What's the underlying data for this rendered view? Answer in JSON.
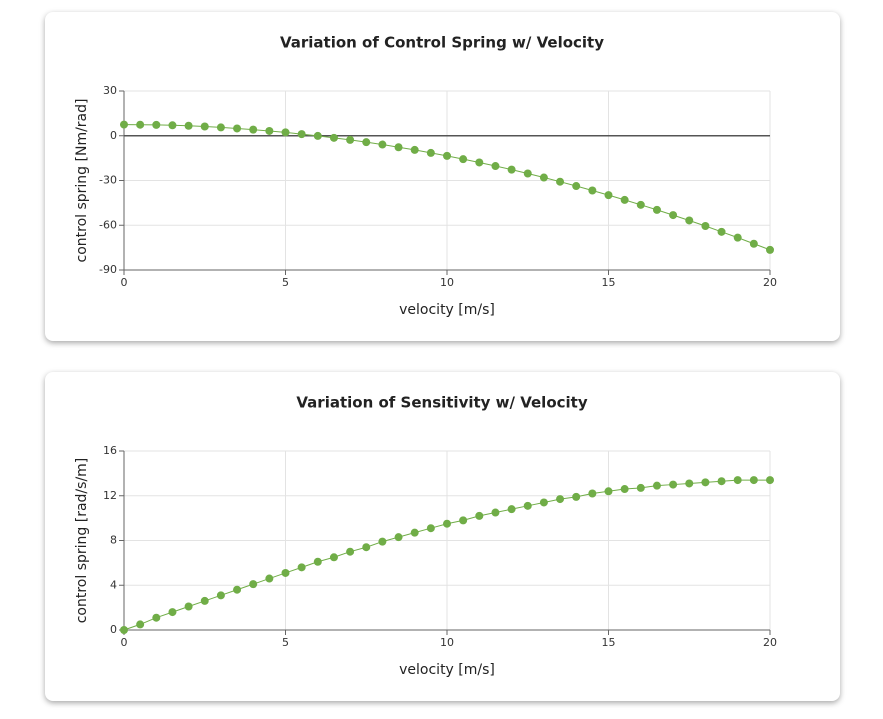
{
  "chart_data": [
    {
      "type": "line",
      "title": "Variation of Control Spring w/ Velocity",
      "x_label": "velocity [m/s]",
      "y_label": "control spring [Nm/rad]",
      "xlim": [
        0,
        20
      ],
      "xticks": [
        0,
        5,
        10,
        15,
        20
      ],
      "ylim": [
        -90,
        30
      ],
      "yticks": [
        -90,
        -60,
        -30,
        0,
        30
      ],
      "grid": true,
      "series": [
        {
          "color": "#70ad47",
          "x": [
            0,
            0.5,
            1,
            1.5,
            2,
            2.5,
            3,
            3.5,
            4,
            4.5,
            5,
            5.5,
            6,
            6.5,
            7,
            7.5,
            8,
            8.5,
            9,
            9.5,
            10,
            10.5,
            11,
            11.5,
            12,
            12.5,
            13,
            13.5,
            14,
            14.5,
            15,
            15.5,
            16,
            16.5,
            17,
            17.5,
            18,
            18.5,
            19,
            19.5,
            20
          ],
          "values": [
            7.5,
            7.4,
            7.3,
            7.0,
            6.7,
            6.2,
            5.6,
            4.9,
            4.1,
            3.2,
            2.3,
            1.1,
            -0.1,
            -1.4,
            -2.8,
            -4.3,
            -5.9,
            -7.7,
            -9.5,
            -11.5,
            -13.5,
            -15.7,
            -17.9,
            -20.3,
            -22.7,
            -25.3,
            -28.0,
            -30.8,
            -33.7,
            -36.7,
            -39.8,
            -43.0,
            -46.3,
            -49.7,
            -53.2,
            -56.8,
            -60.5,
            -64.4,
            -68.3,
            -72.4,
            -76.5
          ]
        }
      ]
    },
    {
      "type": "line",
      "title": "Variation of Sensitivity w/ Velocity",
      "x_label": "velocity [m/s]",
      "y_label": "control spring [rad/s/m]",
      "xlim": [
        0,
        20
      ],
      "xticks": [
        0,
        5,
        10,
        15,
        20
      ],
      "ylim": [
        0,
        16
      ],
      "yticks": [
        0,
        4,
        8,
        12,
        16
      ],
      "grid": true,
      "series": [
        {
          "color": "#70ad47",
          "x": [
            0,
            0.5,
            1,
            1.5,
            2,
            2.5,
            3,
            3.5,
            4,
            4.5,
            5,
            5.5,
            6,
            6.5,
            7,
            7.5,
            8,
            8.5,
            9,
            9.5,
            10,
            10.5,
            11,
            11.5,
            12,
            12.5,
            13,
            13.5,
            14,
            14.5,
            15,
            15.5,
            16,
            16.5,
            17,
            17.5,
            18,
            18.5,
            19,
            19.5,
            20
          ],
          "values": [
            0,
            0.5,
            1.1,
            1.6,
            2.1,
            2.6,
            3.1,
            3.6,
            4.1,
            4.6,
            5.1,
            5.6,
            6.1,
            6.5,
            7.0,
            7.4,
            7.9,
            8.3,
            8.7,
            9.1,
            9.5,
            9.8,
            10.2,
            10.5,
            10.8,
            11.1,
            11.4,
            11.7,
            11.9,
            12.2,
            12.4,
            12.6,
            12.7,
            12.9,
            13.0,
            13.1,
            13.2,
            13.3,
            13.4,
            13.4,
            13.4
          ]
        }
      ]
    }
  ]
}
